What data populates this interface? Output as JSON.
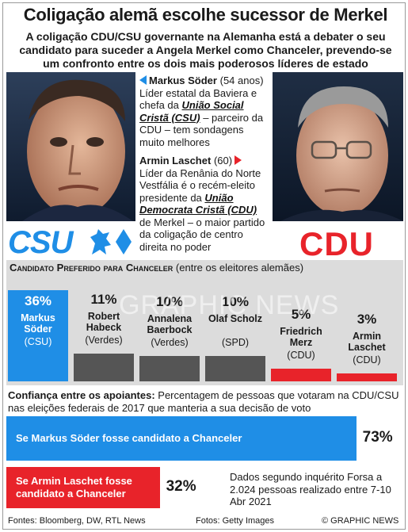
{
  "title": "Coligação alemã escolhe sucessor de Merkel",
  "subtitle": "A coligação CDU/CSU governante na Alemanha está a debater o seu candidato para suceder a Angela Merkel como Chanceler, prevendo-se um confronto entre os dois mais poderosos  líderes de estado",
  "soder": {
    "name": "Markus Söder",
    "age": "(54 anos)",
    "bio_1": "Líder estatal da Baviera e chefa da ",
    "party": "União Social Cristã (CSU)",
    "bio_2": " – parceiro da CDU – tem sondagens muito melhores"
  },
  "laschet": {
    "name": "Armin Laschet",
    "age": "(60)",
    "bio_1": "Líder da Renânia do Norte Vestfália é o recém-eleito presidente da ",
    "party": "União Democrata Cristã (CDU)",
    "bio_2": " de Merkel – o maior partido da coligação de centro direita no poder"
  },
  "logos": {
    "csu": "CSU",
    "cdu": "CDU"
  },
  "colors": {
    "csu_blue": "#1f8ee6",
    "cdu_red": "#e8232a",
    "grey": "#555555",
    "panel": "#dcdcdc"
  },
  "watermark": "GRAPHIC NEWS",
  "chart_data": [
    {
      "type": "bar",
      "title": "Candidato Preferido para Chanceler",
      "subtitle": "(entre os eleitores alemães)",
      "unit": "%",
      "categories": [
        {
          "name": "Markus Söder",
          "party": "(CSU)",
          "value": 36,
          "color": "#1f8ee6"
        },
        {
          "name": "Robert Habeck",
          "party": "(Verdes)",
          "value": 11,
          "color": "#555555"
        },
        {
          "name": "Annalena Baerbock",
          "party": "(Verdes)",
          "value": 10,
          "color": "#555555"
        },
        {
          "name": "Olaf Scholz",
          "party": "(SPD)",
          "value": 10,
          "color": "#555555"
        },
        {
          "name": "Friedrich Merz",
          "party": "(CDU)",
          "value": 5,
          "color": "#e8232a"
        },
        {
          "name": "Armin Laschet",
          "party": "(CDU)",
          "value": 3,
          "color": "#e8232a"
        }
      ]
    },
    {
      "type": "bar",
      "title": "Confiança entre os apoiantes:",
      "subtitle": "Percentagem de pessoas que votaram na CDU/CSU nas eleições federais de 2017 que manteria a sua decisão de voto",
      "unit": "%",
      "categories": [
        {
          "label": "Se Markus Söder fosse candidato a Chanceler",
          "value": 73,
          "color": "#1f8ee6"
        },
        {
          "label": "Se Armin Laschet fosse candidato a Chanceler",
          "value": 32,
          "color": "#e8232a"
        }
      ],
      "note": "Dados segundo inquérito Forsa a 2.024 pessoas realizado entre 7-10 Abr 2021"
    }
  ],
  "footer": {
    "sources": "Fontes: Bloomberg, DW, RTL News",
    "photos": "Fotos: Getty Images",
    "credit": "© GRAPHIC NEWS"
  }
}
